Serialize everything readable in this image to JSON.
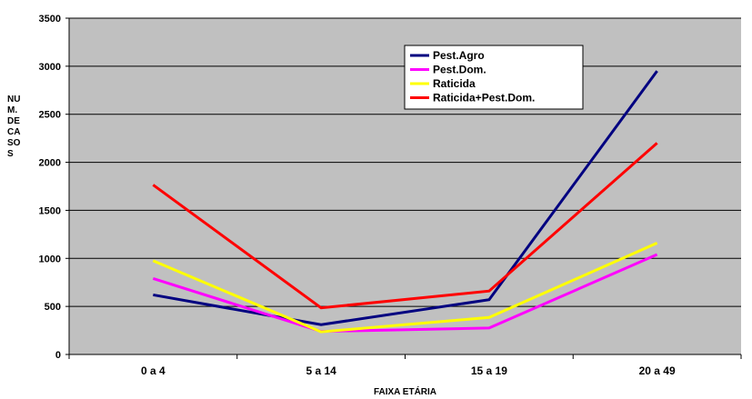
{
  "chart_data": {
    "type": "line",
    "categories": [
      "0 a 4",
      "5 a 14",
      "15 a 19",
      "20 a 49"
    ],
    "xlabel": "FAIXA ETÁRIA",
    "ylabel_lines": [
      "NU",
      "M.",
      "DE",
      "CA",
      "SO",
      "S"
    ],
    "ylim": [
      0,
      3500
    ],
    "yticks": [
      0,
      500,
      1000,
      1500,
      2000,
      2500,
      3000,
      3500
    ],
    "grid": true,
    "plot_background": "#c0c0c0",
    "legend_position": "top-right",
    "series": [
      {
        "name": "Pest.Agro",
        "color": "#000080",
        "values": [
          620,
          310,
          570,
          2950
        ]
      },
      {
        "name": "Pest.Dom.",
        "color": "#ff00ff",
        "values": [
          790,
          240,
          275,
          1040
        ]
      },
      {
        "name": "Raticida",
        "color": "#ffff00",
        "values": [
          975,
          235,
          385,
          1160
        ]
      },
      {
        "name": "Raticida+Pest.Dom.",
        "color": "#ff0000",
        "values": [
          1765,
          485,
          660,
          2200
        ]
      }
    ]
  }
}
